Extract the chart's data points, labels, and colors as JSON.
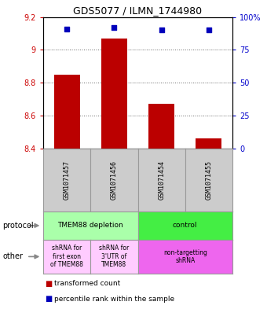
{
  "title": "GDS5077 / ILMN_1744980",
  "samples": [
    "GSM1071457",
    "GSM1071456",
    "GSM1071454",
    "GSM1071455"
  ],
  "bar_values": [
    8.85,
    9.07,
    8.67,
    8.46
  ],
  "bar_bottom": 8.4,
  "percentile_values": [
    91,
    92,
    90,
    90
  ],
  "ylim_left": [
    8.4,
    9.2
  ],
  "ylim_right": [
    0,
    100
  ],
  "yticks_left": [
    8.4,
    8.6,
    8.8,
    9.0,
    9.2
  ],
  "yticks_right": [
    0,
    25,
    50,
    75,
    100
  ],
  "ytick_labels_left": [
    "8.4",
    "8.6",
    "8.8",
    "9",
    "9.2"
  ],
  "ytick_labels_right": [
    "0",
    "25",
    "50",
    "75",
    "100%"
  ],
  "bar_color": "#bb0000",
  "scatter_color": "#0000bb",
  "grid_dotted_ticks": [
    9.0,
    8.8,
    8.6
  ],
  "protocol_row": [
    {
      "label": "TMEM88 depletion",
      "color": "#aaffaa",
      "span": [
        0,
        2
      ]
    },
    {
      "label": "control",
      "color": "#44ee44",
      "span": [
        2,
        4
      ]
    }
  ],
  "other_row": [
    {
      "label": "shRNA for\nfirst exon\nof TMEM88",
      "color": "#ffccff",
      "span": [
        0,
        1
      ]
    },
    {
      "label": "shRNA for\n3'UTR of\nTMEM88",
      "color": "#ffccff",
      "span": [
        1,
        2
      ]
    },
    {
      "label": "non-targetting\nshRNA",
      "color": "#ee66ee",
      "span": [
        2,
        4
      ]
    }
  ],
  "bg_color": "#ffffff",
  "sample_box_color": "#cccccc",
  "sample_box_edge": "#999999",
  "legend_red_label": "transformed count",
  "legend_blue_label": "percentile rank within the sample",
  "arrow_color": "#888888",
  "protocol_label": "protocol",
  "other_label": "other"
}
